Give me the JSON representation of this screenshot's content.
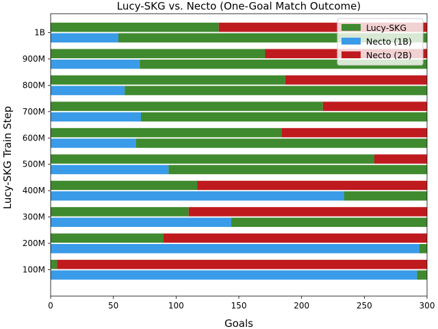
{
  "chart_data": {
    "type": "bar",
    "orientation": "horizontal",
    "stacked": true,
    "title": "Lucy-SKG vs. Necto (One-Goal Match Outcome)",
    "xlabel": "Goals",
    "ylabel": "Lucy-SKG Train Step",
    "xlim": [
      0,
      300
    ],
    "xticks": [
      0,
      50,
      100,
      150,
      200,
      250,
      300
    ],
    "categories": [
      "100M",
      "200M",
      "300M",
      "400M",
      "500M",
      "600M",
      "700M",
      "800M",
      "900M",
      "1B"
    ],
    "legend_position": "top-right",
    "colors": {
      "lucy": "#3f8a2e",
      "necto_1b": "#3a9be8",
      "necto_2b": "#bf1b1f"
    },
    "legend": [
      {
        "key": "lucy",
        "label": "Lucy-SKG"
      },
      {
        "key": "necto_1b",
        "label": "Necto (1B)"
      },
      {
        "key": "necto_2b",
        "label": "Necto (2B)"
      }
    ],
    "series": [
      {
        "name": "vs. Necto (1B)",
        "opponent": "necto_1b",
        "necto_goals": [
          292,
          294,
          144,
          234,
          94,
          68,
          72,
          59,
          71,
          54
        ],
        "lucy_goals": [
          8,
          6,
          156,
          66,
          206,
          232,
          228,
          241,
          229,
          246
        ]
      },
      {
        "name": "vs. Necto (2B)",
        "opponent": "necto_2b",
        "lucy_goals": [
          5,
          90,
          110,
          117,
          258,
          184,
          217,
          187,
          171,
          134
        ],
        "necto_goals": [
          295,
          210,
          190,
          183,
          42,
          116,
          83,
          113,
          129,
          166
        ]
      }
    ]
  }
}
